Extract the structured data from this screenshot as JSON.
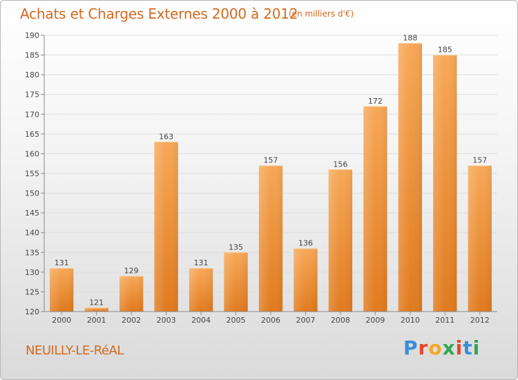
{
  "header": {
    "title": "Achats et Charges Externes 2000 à 2012",
    "subtitle": "(en milliers d'€)"
  },
  "footer": {
    "commune": "NEUILLY-LE-RéAL",
    "logo_text": "Proxiti",
    "logo_colors": [
      "#3a8fd9",
      "#e8452c",
      "#f5a623",
      "#2fa84f",
      "#e8452c",
      "#3a8fd9",
      "#2fa84f"
    ]
  },
  "colors": {
    "bar_light": "#f7a857",
    "bar_dark": "#e07a1e",
    "text_accent": "#d2691e",
    "grid": "#dddddd"
  },
  "chart_data": {
    "type": "bar",
    "title": "Achats et Charges Externes 2000 à 2012",
    "subtitle": "(en milliers d'€)",
    "categories": [
      "2000",
      "2001",
      "2002",
      "2003",
      "2004",
      "2005",
      "2006",
      "2007",
      "2008",
      "2009",
      "2010",
      "2011",
      "2012"
    ],
    "values": [
      131,
      121,
      129,
      163,
      131,
      135,
      157,
      136,
      156,
      172,
      188,
      185,
      157
    ],
    "xlabel": "",
    "ylabel": "",
    "ylim": [
      120,
      190
    ],
    "yticks": [
      120,
      125,
      130,
      135,
      140,
      145,
      150,
      155,
      160,
      165,
      170,
      175,
      180,
      185,
      190
    ],
    "grid": true,
    "legend": "none"
  }
}
